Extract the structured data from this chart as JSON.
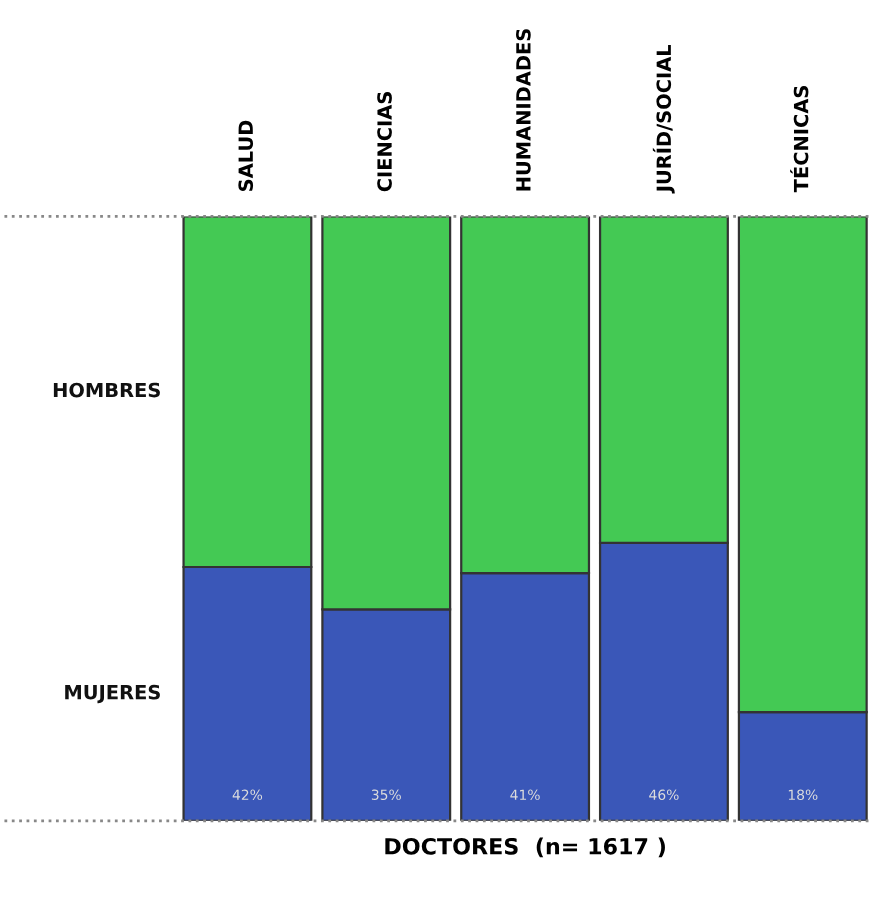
{
  "chart_data": {
    "type": "bar",
    "stacked": true,
    "xlabel": "DOCTORES  (n= 1617 )",
    "categories": [
      "SALUD",
      "CIENCIAS",
      "HUMANIDADES",
      "JURÍD/SOCIAL",
      "TÉCNICAS"
    ],
    "series": [
      {
        "name": "MUJERES",
        "color": "#3a57b8",
        "values": [
          42,
          35,
          41,
          46,
          18
        ],
        "value_labels": [
          "42%",
          "35%",
          "41%",
          "46%",
          "18%"
        ]
      },
      {
        "name": "HOMBRES",
        "color": "#44c954",
        "values": [
          58,
          65,
          59,
          54,
          82
        ]
      }
    ],
    "ylim": [
      0,
      100
    ],
    "legend": "left"
  }
}
